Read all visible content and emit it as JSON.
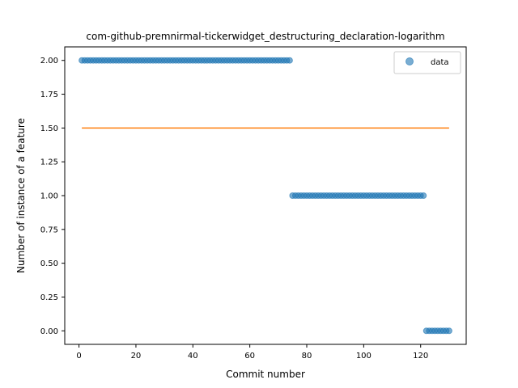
{
  "chart_data": {
    "type": "scatter",
    "title": "com-github-premnirmal-tickerwidget_destructuring_declaration-logarithm",
    "xlabel": "Commit number",
    "ylabel": "Number of instance of a feature",
    "xlim": [
      -5,
      136
    ],
    "ylim": [
      -0.1,
      2.1
    ],
    "xticks": [
      0,
      20,
      40,
      60,
      80,
      100,
      120
    ],
    "yticks": [
      0.0,
      0.25,
      0.5,
      0.75,
      1.0,
      1.25,
      1.5,
      1.75,
      2.0
    ],
    "xtick_labels": [
      "0",
      "20",
      "40",
      "60",
      "80",
      "100",
      "120"
    ],
    "ytick_labels": [
      "0.00",
      "0.25",
      "0.50",
      "0.75",
      "1.00",
      "1.25",
      "1.50",
      "1.75",
      "2.00"
    ],
    "grid": false,
    "legend_position": "top-right",
    "series": [
      {
        "name": "data",
        "kind": "scatter",
        "color": "#1f77b4",
        "segments": [
          {
            "x_start": 1,
            "x_end": 74,
            "y": 2
          },
          {
            "x_start": 75,
            "x_end": 121,
            "y": 1
          },
          {
            "x_start": 122,
            "x_end": 130,
            "y": 0
          }
        ]
      },
      {
        "kind": "line",
        "color": "#ff7f0e",
        "x": [
          1,
          130
        ],
        "y": [
          1.5,
          1.5
        ]
      }
    ]
  }
}
